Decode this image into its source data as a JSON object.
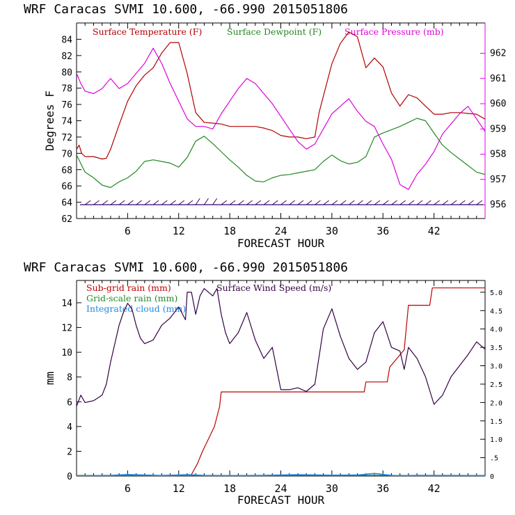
{
  "colors": {
    "background": "#ffffff",
    "axis": "#000000",
    "pressure_axis": "#dd00dd",
    "temperature": "#b00000",
    "dewpoint": "#228822",
    "pressure": "#dd00dd",
    "wind_barbs": "#330066",
    "subgrid_rain": "#bb0000",
    "gridscale_rain": "#228822",
    "cloud": "#1e88e5",
    "wind_speed": "#330044"
  },
  "chart_data": [
    {
      "type": "line",
      "title": "WRF   Caracas SVMI  10.600, -66.990  2015051806",
      "xlabel": "FORECAST HOUR",
      "ylabel": "Degrees F",
      "xlim": [
        0,
        48
      ],
      "ylim": [
        62,
        86
      ],
      "y2lim": [
        955.45,
        963.2
      ],
      "xticks": [
        6,
        12,
        18,
        24,
        30,
        36,
        42
      ],
      "xtick_labels": [
        "6",
        "12",
        "18",
        "24",
        "30",
        "36",
        "42"
      ],
      "yticks": [
        62,
        64,
        66,
        68,
        70,
        72,
        74,
        76,
        78,
        80,
        82,
        84
      ],
      "ytick_labels": [
        "62",
        "64",
        "66",
        "68",
        "70",
        "72",
        "74",
        "76",
        "78",
        "80",
        "82",
        "84"
      ],
      "y2ticks": [
        956,
        957,
        958,
        959,
        960,
        961,
        962
      ],
      "y2tick_labels": [
        "956",
        "957",
        "958",
        "959",
        "960",
        "961",
        "962"
      ],
      "legend": [
        "Surface Temperature (F)",
        "Surface Dewpoint (F)",
        "Surface Pressure (mb)"
      ],
      "series": [
        {
          "name": "Surface Temperature (F)",
          "axis": "left",
          "x": [
            0,
            0.3,
            0.6,
            1,
            2,
            3,
            3.5,
            4,
            5,
            6,
            7,
            8,
            9,
            10,
            11,
            12,
            13,
            14,
            15,
            16,
            17,
            18,
            19,
            20,
            21,
            22,
            23,
            24,
            25,
            26,
            27,
            28,
            28.5,
            29,
            30,
            31,
            32,
            33,
            34,
            35,
            36,
            37,
            38,
            39,
            40,
            41,
            42,
            43,
            44,
            45,
            46,
            47,
            48
          ],
          "y": [
            70.5,
            71,
            70,
            69.6,
            69.6,
            69.3,
            69.4,
            70.5,
            73.5,
            76.4,
            78.3,
            79.6,
            80.5,
            82.3,
            83.6,
            83.6,
            79.8,
            75,
            73.8,
            73.7,
            73.6,
            73.3,
            73.3,
            73.3,
            73.3,
            73.1,
            72.8,
            72.2,
            72,
            72,
            71.8,
            72,
            75,
            77,
            81,
            83.5,
            84.9,
            84.3,
            80.5,
            81.7,
            80.6,
            77.4,
            75.8,
            77.2,
            76.8,
            75.8,
            74.8,
            74.8,
            75,
            75,
            74.9,
            74.8,
            74.2
          ]
        },
        {
          "name": "Surface Dewpoint (F)",
          "axis": "left",
          "x": [
            0,
            1,
            2,
            3,
            4,
            5,
            6,
            7,
            8,
            9,
            10,
            11,
            12,
            13,
            14,
            15,
            16,
            17,
            18,
            19,
            20,
            21,
            22,
            23,
            24,
            25,
            26,
            27,
            28,
            29,
            30,
            31,
            32,
            33,
            34,
            35,
            36,
            37,
            38,
            39,
            40,
            41,
            42,
            43,
            44,
            45,
            46,
            47,
            48
          ],
          "y": [
            69.8,
            67.7,
            67,
            66.1,
            65.8,
            66.5,
            67,
            67.8,
            69,
            69.2,
            69,
            68.8,
            68.3,
            69.5,
            71.5,
            72.1,
            71.2,
            70.2,
            69.2,
            68.3,
            67.3,
            66.6,
            66.5,
            67,
            67.3,
            67.4,
            67.6,
            67.8,
            68,
            69,
            69.8,
            69.1,
            68.7,
            68.9,
            69.6,
            72,
            72.5,
            72.9,
            73.3,
            73.8,
            74.3,
            74,
            72.5,
            71,
            70.1,
            69.3,
            68.5,
            67.7,
            67.4
          ]
        },
        {
          "name": "Surface Pressure (mb)",
          "axis": "right",
          "x": [
            0,
            0.5,
            1,
            2,
            3,
            4,
            5,
            6,
            7,
            8,
            9,
            10,
            11,
            12,
            13,
            14,
            15,
            16,
            17,
            18,
            19,
            20,
            21,
            22,
            23,
            24,
            25,
            26,
            27,
            28,
            29,
            30,
            31,
            32,
            33,
            34,
            35,
            36,
            37,
            38,
            39,
            40,
            41,
            42,
            43,
            44,
            45,
            46,
            47,
            48
          ],
          "y": [
            961.2,
            960.8,
            960.5,
            960.4,
            960.6,
            961,
            960.6,
            960.8,
            961.2,
            961.6,
            962.2,
            961.6,
            960.8,
            960.1,
            959.4,
            959.1,
            959.1,
            959,
            959.6,
            960.1,
            960.6,
            961,
            960.8,
            960.4,
            960,
            959.5,
            959,
            958.5,
            958.2,
            958.4,
            959,
            959.6,
            959.9,
            960.2,
            959.7,
            959.3,
            959.1,
            958.4,
            957.8,
            956.8,
            956.6,
            957.2,
            957.6,
            958.1,
            958.8,
            959.2,
            959.6,
            959.9,
            959.4,
            958.9
          ]
        }
      ],
      "wind_barb_row_value": 63.7
    },
    {
      "type": "line",
      "title": "WRF   Caracas SVMI  10.600, -66.990  2015051806",
      "xlabel": "FORECAST HOUR",
      "ylabel": "mm",
      "xlim": [
        0,
        48
      ],
      "ylim": [
        0,
        15.8
      ],
      "y2lim": [
        0,
        5.32
      ],
      "xticks": [
        6,
        12,
        18,
        24,
        30,
        36,
        42
      ],
      "xtick_labels": [
        "6",
        "12",
        "18",
        "24",
        "30",
        "36",
        "42"
      ],
      "yticks": [
        0,
        2,
        4,
        6,
        8,
        10,
        12,
        14
      ],
      "ytick_labels": [
        "0",
        "2",
        "4",
        "6",
        "8",
        "10",
        "12",
        "14"
      ],
      "y2ticks": [
        0,
        0.5,
        1.0,
        1.5,
        2.0,
        2.5,
        3.0,
        3.5,
        4.0,
        4.5,
        5.0
      ],
      "y2tick_labels": [
        "0",
        ".5",
        "1.0",
        "1.5",
        "2.0",
        "2.5",
        "3.0",
        "3.5",
        "4.0",
        "4.5",
        "5.0"
      ],
      "legend": [
        "Sub-grid rain (mm)",
        "Surface Wind Speed (m/s)",
        "Grid-scale rain (mm)",
        "Integrated cloud (mm)"
      ],
      "series": [
        {
          "name": "Sub-grid rain (mm)",
          "axis": "left",
          "x": [
            0,
            13.4,
            14.2,
            14.8,
            15.5,
            16.2,
            16.8,
            17,
            33.8,
            34,
            36.5,
            36.8,
            38.5,
            39,
            41.5,
            41.8,
            48
          ],
          "y": [
            0,
            0,
            1,
            2,
            3,
            4,
            5.6,
            6.8,
            6.8,
            7.6,
            7.6,
            8.8,
            10.2,
            13.8,
            13.8,
            15.2,
            15.2
          ]
        },
        {
          "name": "Surface Wind Speed (m/s)",
          "axis": "right",
          "x": [
            0,
            0.5,
            1,
            2,
            3,
            3.5,
            4,
            4.5,
            5,
            5.5,
            6,
            6.5,
            7,
            7.5,
            8,
            9,
            10,
            11,
            12,
            12.8,
            13,
            13.5,
            14,
            14.5,
            15,
            16,
            16.5,
            17,
            17.5,
            18,
            19,
            20,
            21,
            22,
            23,
            24,
            25,
            26,
            27,
            28,
            29,
            30,
            31,
            32,
            33,
            34,
            35,
            36,
            37,
            38,
            38.5,
            39,
            40,
            41,
            42,
            43,
            44,
            45,
            46,
            47,
            48
          ],
          "y": [
            1.9,
            2.2,
            2.0,
            2.05,
            2.2,
            2.5,
            3.1,
            3.6,
            4.1,
            4.45,
            4.7,
            4.55,
            4.1,
            3.75,
            3.6,
            3.7,
            4.1,
            4.3,
            4.6,
            4.25,
            5.0,
            5.0,
            4.4,
            4.9,
            5.1,
            4.9,
            5.1,
            4.4,
            3.9,
            3.6,
            3.9,
            4.45,
            3.7,
            3.2,
            3.5,
            2.35,
            2.35,
            2.4,
            2.3,
            2.5,
            4.0,
            4.55,
            3.8,
            3.2,
            2.9,
            3.1,
            3.9,
            4.2,
            3.5,
            3.4,
            2.9,
            3.5,
            3.2,
            2.7,
            1.95,
            2.2,
            2.7,
            3.0,
            3.3,
            3.65,
            3.45
          ]
        },
        {
          "name": "Grid-scale rain (mm)",
          "axis": "left",
          "x": [
            0,
            48
          ],
          "y": [
            0.05,
            0.05
          ]
        },
        {
          "name": "Integrated cloud (mm)",
          "axis": "left",
          "x": [
            0,
            4,
            6,
            8,
            10,
            13,
            15,
            18,
            22,
            26,
            30,
            33,
            35,
            37,
            38,
            40,
            44,
            48
          ],
          "y": [
            0,
            0.05,
            0.12,
            0.08,
            0.04,
            0.1,
            0.05,
            0.03,
            0.05,
            0.1,
            0.06,
            0.08,
            0.2,
            0.05,
            0.02,
            0.05,
            0.04,
            0.03
          ]
        }
      ]
    }
  ]
}
